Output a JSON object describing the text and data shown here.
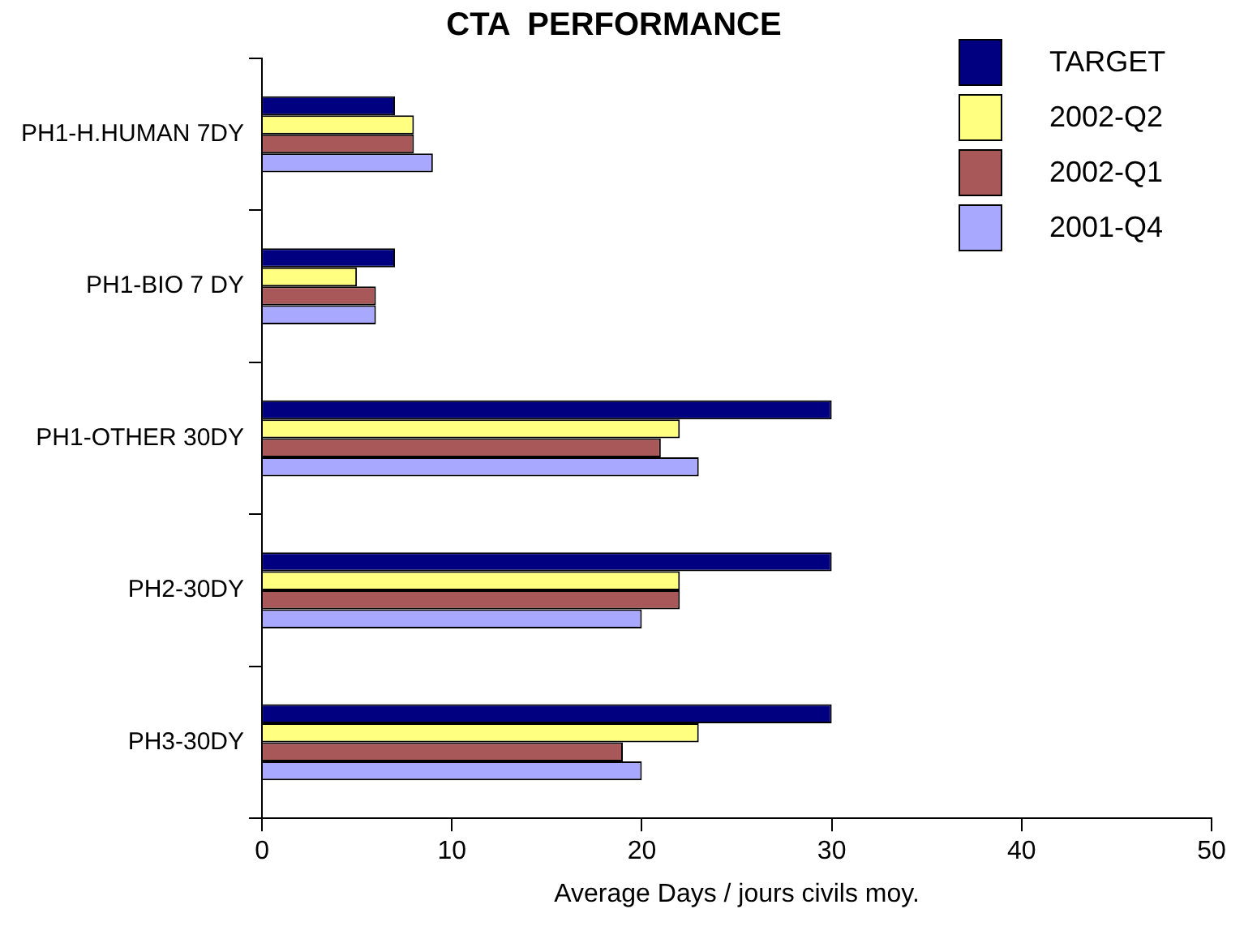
{
  "chart_data": {
    "type": "bar",
    "orientation": "horizontal",
    "title": "CTA  PERFORMANCE",
    "xlabel": "Average Days / jours civils moy.",
    "categories": [
      "PH1-H.HUMAN 7DY",
      "PH1-BIO 7 DY",
      "PH1-OTHER 30DY",
      "PH2-30DY",
      "PH3-30DY"
    ],
    "series": [
      {
        "name": "TARGET",
        "color": "#000080",
        "values": [
          7,
          7,
          30,
          30,
          30
        ]
      },
      {
        "name": "2002-Q2",
        "color": "#ffff80",
        "values": [
          8,
          5,
          22,
          22,
          23
        ]
      },
      {
        "name": "2002-Q1",
        "color": "#a85858",
        "values": [
          8,
          6,
          21,
          22,
          19
        ]
      },
      {
        "name": "2001-Q4",
        "color": "#a8a8ff",
        "values": [
          9,
          6,
          23,
          20,
          20
        ]
      }
    ],
    "xlim": [
      0,
      50
    ],
    "xticks": [
      0,
      10,
      20,
      30,
      40,
      50
    ],
    "grid": false,
    "legend": "top right"
  }
}
